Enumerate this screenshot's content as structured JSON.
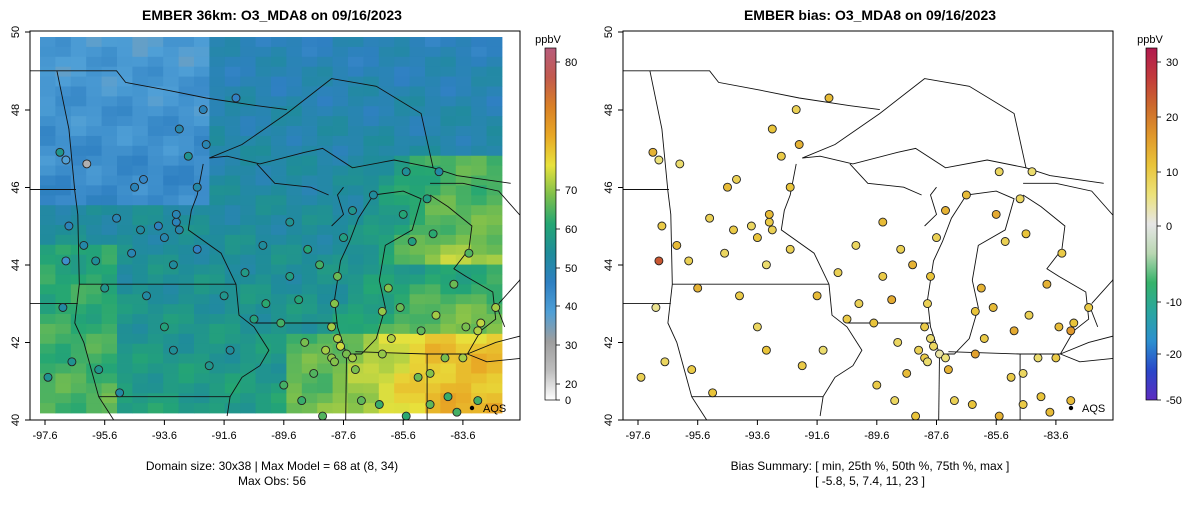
{
  "left_panel": {
    "title": "EMBER 36km: O3_MDA8 on 09/16/2023",
    "x_ticks": [
      "-97.6",
      "-95.6",
      "-93.6",
      "-91.6",
      "-89.6",
      "-87.6",
      "-85.6",
      "-83.6"
    ],
    "y_ticks": [
      "40",
      "42",
      "44",
      "46",
      "48",
      "50"
    ],
    "colorbar_unit": "ppbV",
    "colorbar_ticks": [
      "0",
      "20",
      "30",
      "40",
      "50",
      "60",
      "70",
      "80"
    ],
    "caption_line1": "Domain size: 30x38 | Max Model = 68 at (8, 34)",
    "caption_line2": "Max Obs: 56",
    "legend_label": "AQS"
  },
  "right_panel": {
    "title": "EMBER bias: O3_MDA8 on 09/16/2023",
    "x_ticks": [
      "-97.6",
      "-95.6",
      "-93.6",
      "-91.6",
      "-89.6",
      "-87.6",
      "-85.6",
      "-83.6"
    ],
    "y_ticks": [
      "40",
      "42",
      "44",
      "46",
      "48",
      "50"
    ],
    "colorbar_unit": "ppbV",
    "colorbar_ticks": [
      "-50",
      "-20",
      "-10",
      "0",
      "10",
      "20",
      "30"
    ],
    "caption_line1": "Bias Summary: [ min, 25th %, 50th %, 75th %, max ]",
    "caption_line2": "[ -5.8,   5,   7.4,   11,   23 ]",
    "legend_label": "AQS"
  },
  "colors": {
    "conc_scale": [
      "#ffffff",
      "#bdbdbd",
      "#9e9e9e",
      "#4f9fd6",
      "#2f80c2",
      "#1f8c9a",
      "#24a673",
      "#7fc04b",
      "#e8e23c",
      "#e8a825",
      "#d98026",
      "#c25a4e",
      "#b85c7c"
    ],
    "bias_scale": [
      "#5d2cc0",
      "#2a47c9",
      "#2c8fcf",
      "#2aa6a0",
      "#36b36a",
      "#b9d7b2",
      "#e6e6e6",
      "#ece27a",
      "#e9c43a",
      "#e0982b",
      "#cc6a2c",
      "#c23a3c",
      "#b11a4f"
    ]
  }
}
